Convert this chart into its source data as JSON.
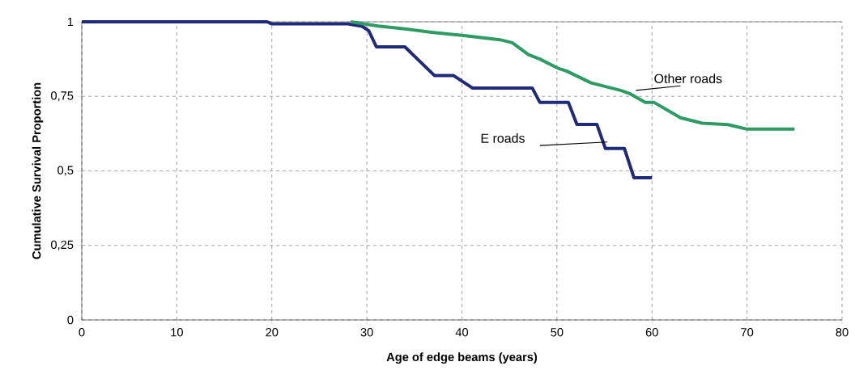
{
  "chart_data": {
    "type": "line",
    "xlabel": "Age of edge beams (years)",
    "ylabel": "Cumulative Survival Proportion",
    "xlim": [
      0,
      80
    ],
    "ylim": [
      0,
      1
    ],
    "xticks": [
      0,
      10,
      20,
      30,
      40,
      50,
      60,
      70,
      80
    ],
    "yticks": [
      0,
      {
        "value": 0.25,
        "label": "0,25"
      },
      {
        "value": 0.5,
        "label": "0,5"
      },
      {
        "value": 0.75,
        "label": "0,75"
      },
      1
    ],
    "grid": true,
    "legend": false,
    "series": [
      {
        "name": "E roads",
        "color": "#1f2a78",
        "x": [
          0,
          19.5,
          20,
          28,
          29.5,
          30.2,
          31,
          34,
          37.1,
          39.1,
          41.1,
          47.4,
          48.2,
          51.2,
          52.1,
          54.2,
          55.1,
          57.1,
          58.1,
          60
        ],
        "values": [
          1,
          1,
          0.993,
          0.993,
          0.985,
          0.97,
          0.916,
          0.916,
          0.82,
          0.82,
          0.778,
          0.778,
          0.73,
          0.73,
          0.656,
          0.656,
          0.575,
          0.575,
          0.477,
          0.477
        ]
      },
      {
        "name": "Other roads",
        "color": "#2e9a64",
        "x": [
          28.3,
          31.2,
          34,
          36.8,
          40.2,
          44,
          45.3,
          47,
          48.2,
          50.2,
          51,
          53.6,
          56.7,
          57.6,
          59.3,
          60.2,
          63,
          65.3,
          68,
          70,
          75
        ],
        "values": [
          1,
          0.986,
          0.976,
          0.965,
          0.954,
          0.94,
          0.93,
          0.89,
          0.875,
          0.843,
          0.835,
          0.795,
          0.77,
          0.76,
          0.73,
          0.73,
          0.678,
          0.66,
          0.655,
          0.64,
          0.64
        ]
      }
    ]
  }
}
